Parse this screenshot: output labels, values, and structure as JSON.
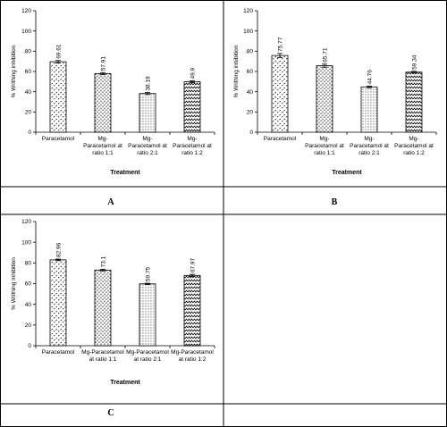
{
  "panel_labels": [
    "A",
    "B",
    "C"
  ],
  "chart_data": [
    {
      "type": "bar",
      "panel": "A",
      "ylabel": "% Writhing inhibition",
      "xlabel": "Treatment",
      "ylim": [
        0,
        120
      ],
      "yticks": [
        "0",
        "20",
        "40",
        "60",
        "80",
        "100",
        "120"
      ],
      "categories": [
        [
          "Paracetamol"
        ],
        [
          "Mg-",
          "Paracetamol at",
          "ratio 1:1"
        ],
        [
          "Mg-",
          "Paracetamol at",
          "ratio 2:1"
        ],
        [
          "Mg-",
          "Paracetamol at",
          "ratio 1:2"
        ]
      ],
      "values": [
        69.61,
        57.91,
        38.19,
        49.9
      ],
      "value_labels": [
        "69.61",
        "57.91",
        "38.19",
        "49.9"
      ],
      "errors": [
        1.2,
        1.0,
        1.0,
        0.8
      ],
      "patterns": [
        "diag",
        "dash",
        "dot",
        "zigzag"
      ],
      "grid": false
    },
    {
      "type": "bar",
      "panel": "B",
      "ylabel": "% Writhing inhibition",
      "xlabel": "Treatment",
      "ylim": [
        0,
        120
      ],
      "yticks": [
        "0",
        "20",
        "40",
        "60",
        "80",
        "100",
        "120"
      ],
      "categories": [
        [
          "Paracetamol"
        ],
        [
          "Mg-",
          "Paracetamol at",
          "ratio 1:1"
        ],
        [
          "Mg-",
          "Paracetamol at",
          "ratio 2:1"
        ],
        [
          "Mg-",
          "Paracetamol at",
          "ratio 1:2"
        ]
      ],
      "values": [
        75.77,
        65.71,
        44.76,
        59.34
      ],
      "value_labels": [
        "75.77",
        "65.71",
        "44.76",
        "59.34"
      ],
      "errors": [
        2.0,
        1.5,
        0.8,
        0.8
      ],
      "patterns": [
        "diag",
        "dash",
        "dot",
        "zigzag"
      ],
      "grid": false
    },
    {
      "type": "bar",
      "panel": "C",
      "ylabel": "% Writhing inhibition",
      "xlabel": "Treatment",
      "ylim": [
        0,
        120
      ],
      "yticks": [
        "0",
        "20",
        "40",
        "60",
        "80",
        "100",
        "120"
      ],
      "categories": [
        [
          "Paracetamol"
        ],
        [
          "Mg-Paracetamol",
          "at ratio 1:1"
        ],
        [
          "Mg-Paracetamol",
          "at ratio 2:1"
        ],
        [
          "Mg-Paracetamol",
          "at ratio 1:2"
        ]
      ],
      "values": [
        82.96,
        73.1,
        59.75,
        67.97
      ],
      "value_labels": [
        "82.96",
        "73.1",
        "59.75",
        "67.97"
      ],
      "errors": [
        0.8,
        0.8,
        0.6,
        1.0
      ],
      "patterns": [
        "diag",
        "dash",
        "dot",
        "zigzag"
      ],
      "grid": false
    }
  ]
}
